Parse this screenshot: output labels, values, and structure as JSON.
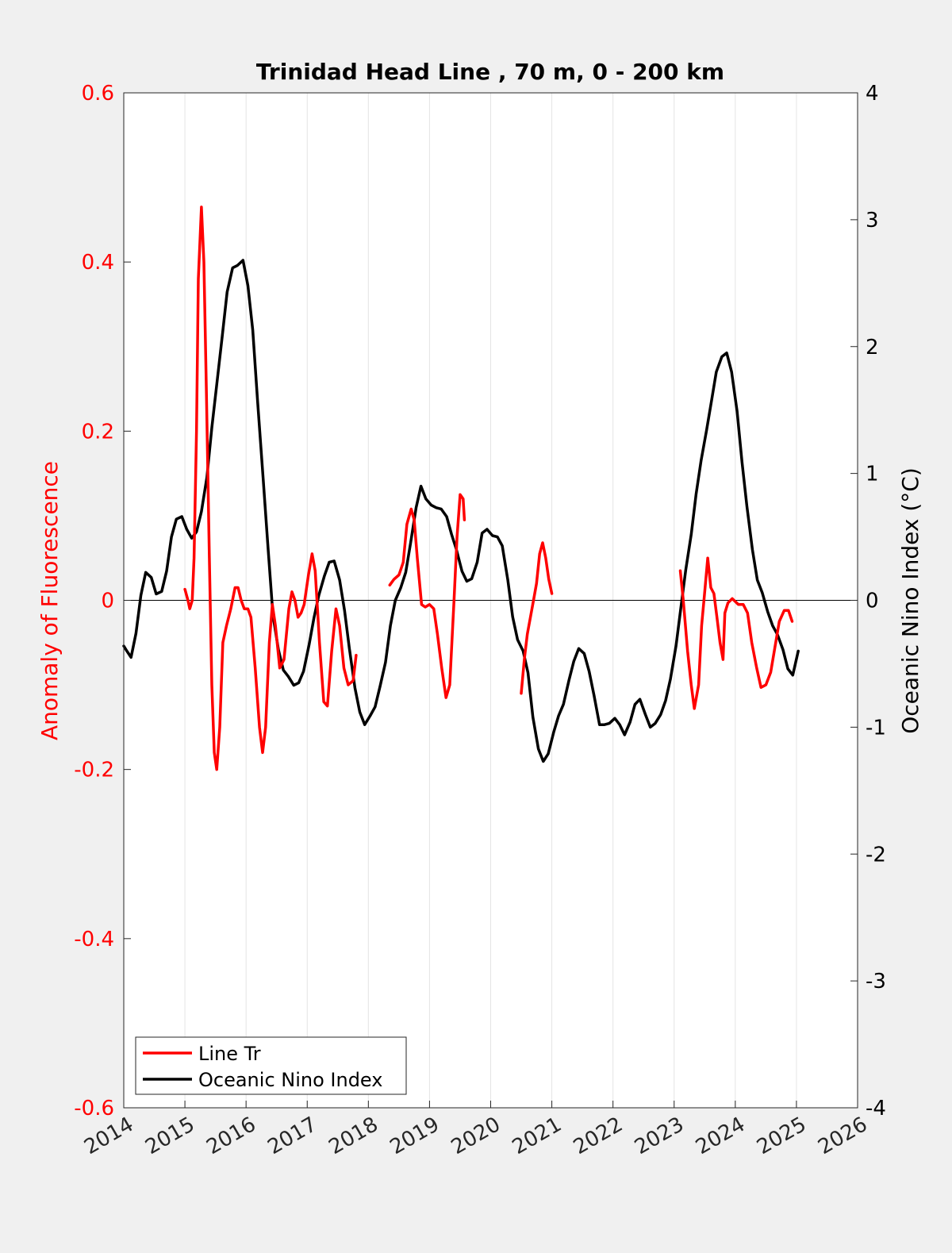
{
  "chart_data": {
    "type": "line",
    "title": "Trinidad Head Line , 70 m, 0 - 200 km",
    "xlabel": "",
    "ylabel_left": "Anomaly of Fluorescence",
    "ylabel_right": "Oceanic Nino Index (°C)",
    "xlim": [
      2014,
      2026
    ],
    "ylim_left": [
      -0.6,
      0.6
    ],
    "ylim_right": [
      -4,
      4
    ],
    "x_ticks": [
      2014,
      2015,
      2016,
      2017,
      2018,
      2019,
      2020,
      2021,
      2022,
      2023,
      2024,
      2025,
      2026
    ],
    "x_tick_labels": [
      "2014",
      "2015",
      "2016",
      "2017",
      "2018",
      "2019",
      "2020",
      "2021",
      "2022",
      "2023",
      "2024",
      "2025",
      "2026"
    ],
    "y_ticks_left": [
      -0.6,
      -0.4,
      -0.2,
      0,
      0.2,
      0.4,
      0.6
    ],
    "y_tick_labels_left": [
      "-0.6",
      "-0.4",
      "-0.2",
      "0",
      "0.2",
      "0.4",
      "0.6"
    ],
    "y_ticks_right": [
      -4,
      -3,
      -2,
      -1,
      0,
      1,
      2,
      3,
      4
    ],
    "y_tick_labels_right": [
      "-4",
      "-3",
      "-2",
      "-1",
      "0",
      "1",
      "2",
      "3",
      "4"
    ],
    "grid": "vertical",
    "zero_line": true,
    "legend_position": "bottom-left",
    "colors": {
      "fluor": "#ff0000",
      "oni": "#000000",
      "left_axis": "#ff0000",
      "right_axis": "#000000"
    },
    "series": [
      {
        "name": "Line Tr",
        "axis": "left",
        "segments": [
          [
            [
              2015.0,
              0.013
            ],
            [
              2015.05,
              0.0
            ],
            [
              2015.08,
              -0.01
            ],
            [
              2015.12,
              0.0
            ],
            [
              2015.15,
              0.05
            ],
            [
              2015.19,
              0.2
            ],
            [
              2015.22,
              0.38
            ],
            [
              2015.27,
              0.465
            ],
            [
              2015.31,
              0.4
            ],
            [
              2015.35,
              0.25
            ],
            [
              2015.4,
              0.05
            ],
            [
              2015.44,
              -0.1
            ],
            [
              2015.48,
              -0.18
            ],
            [
              2015.52,
              -0.2
            ],
            [
              2015.57,
              -0.15
            ],
            [
              2015.62,
              -0.05
            ],
            [
              2015.68,
              -0.03
            ],
            [
              2015.75,
              -0.01
            ],
            [
              2015.82,
              0.015
            ],
            [
              2015.87,
              0.015
            ],
            [
              2015.92,
              0.0
            ],
            [
              2015.97,
              -0.01
            ],
            [
              2016.03,
              -0.01
            ],
            [
              2016.08,
              -0.02
            ],
            [
              2016.15,
              -0.08
            ],
            [
              2016.22,
              -0.15
            ],
            [
              2016.27,
              -0.18
            ],
            [
              2016.32,
              -0.15
            ],
            [
              2016.38,
              -0.05
            ],
            [
              2016.43,
              -0.005
            ],
            [
              2016.48,
              -0.03
            ],
            [
              2016.55,
              -0.08
            ],
            [
              2016.62,
              -0.07
            ],
            [
              2016.7,
              -0.01
            ],
            [
              2016.75,
              0.01
            ],
            [
              2016.8,
              0.0
            ],
            [
              2016.85,
              -0.02
            ],
            [
              2016.9,
              -0.015
            ],
            [
              2016.95,
              -0.005
            ],
            [
              2017.02,
              0.03
            ],
            [
              2017.08,
              0.055
            ],
            [
              2017.13,
              0.035
            ],
            [
              2017.2,
              -0.05
            ],
            [
              2017.27,
              -0.12
            ],
            [
              2017.33,
              -0.125
            ],
            [
              2017.4,
              -0.06
            ],
            [
              2017.47,
              -0.01
            ],
            [
              2017.53,
              -0.03
            ],
            [
              2017.6,
              -0.08
            ],
            [
              2017.67,
              -0.1
            ],
            [
              2017.75,
              -0.095
            ],
            [
              2017.8,
              -0.065
            ]
          ],
          [
            [
              2018.35,
              0.018
            ],
            [
              2018.42,
              0.025
            ],
            [
              2018.5,
              0.03
            ],
            [
              2018.57,
              0.045
            ],
            [
              2018.63,
              0.09
            ],
            [
              2018.7,
              0.108
            ],
            [
              2018.75,
              0.095
            ],
            [
              2018.8,
              0.05
            ],
            [
              2018.87,
              -0.005
            ],
            [
              2018.93,
              -0.008
            ],
            [
              2019.0,
              -0.005
            ],
            [
              2019.07,
              -0.01
            ],
            [
              2019.13,
              -0.04
            ],
            [
              2019.2,
              -0.08
            ],
            [
              2019.27,
              -0.115
            ],
            [
              2019.33,
              -0.1
            ],
            [
              2019.4,
              0.0
            ],
            [
              2019.45,
              0.075
            ],
            [
              2019.5,
              0.125
            ],
            [
              2019.55,
              0.12
            ],
            [
              2019.57,
              0.095
            ]
          ],
          [
            [
              2020.5,
              -0.11
            ],
            [
              2020.55,
              -0.07
            ],
            [
              2020.6,
              -0.04
            ],
            [
              2020.65,
              -0.02
            ],
            [
              2020.7,
              0.0
            ],
            [
              2020.75,
              0.02
            ],
            [
              2020.8,
              0.055
            ],
            [
              2020.85,
              0.068
            ],
            [
              2020.9,
              0.05
            ],
            [
              2020.95,
              0.025
            ],
            [
              2021.0,
              0.008
            ]
          ]
        ],
        "segments_2": [
          [
            [
              2023.1,
              0.035
            ],
            [
              2023.15,
              0.0
            ],
            [
              2023.22,
              -0.06
            ],
            [
              2023.28,
              -0.1
            ],
            [
              2023.33,
              -0.128
            ],
            [
              2023.4,
              -0.1
            ],
            [
              2023.45,
              -0.03
            ],
            [
              2023.5,
              0.01
            ],
            [
              2023.55,
              0.05
            ],
            [
              2023.6,
              0.015
            ],
            [
              2023.65,
              0.008
            ],
            [
              2023.7,
              -0.02
            ],
            [
              2023.75,
              -0.05
            ],
            [
              2023.8,
              -0.07
            ],
            [
              2023.83,
              -0.015
            ],
            [
              2023.88,
              -0.003
            ],
            [
              2023.95,
              0.002
            ],
            [
              2024.05,
              -0.005
            ],
            [
              2024.13,
              -0.005
            ],
            [
              2024.2,
              -0.015
            ],
            [
              2024.27,
              -0.05
            ],
            [
              2024.35,
              -0.08
            ],
            [
              2024.42,
              -0.103
            ],
            [
              2024.5,
              -0.1
            ],
            [
              2024.58,
              -0.085
            ],
            [
              2024.65,
              -0.055
            ],
            [
              2024.72,
              -0.025
            ],
            [
              2024.8,
              -0.012
            ],
            [
              2024.87,
              -0.012
            ],
            [
              2024.93,
              -0.025
            ]
          ]
        ]
      },
      {
        "name": "Oceanic Nino Index",
        "axis": "right",
        "values_xy": [
          [
            2014.0,
            -0.36
          ],
          [
            2014.05,
            -0.4
          ],
          [
            2014.12,
            -0.45
          ],
          [
            2014.2,
            -0.26
          ],
          [
            2014.28,
            0.04
          ],
          [
            2014.36,
            0.22
          ],
          [
            2014.45,
            0.18
          ],
          [
            2014.53,
            0.05
          ],
          [
            2014.62,
            0.07
          ],
          [
            2014.7,
            0.23
          ],
          [
            2014.78,
            0.5
          ],
          [
            2014.86,
            0.64
          ],
          [
            2014.95,
            0.66
          ],
          [
            2015.03,
            0.56
          ],
          [
            2015.11,
            0.49
          ],
          [
            2015.19,
            0.54
          ],
          [
            2015.27,
            0.7
          ],
          [
            2015.36,
            0.97
          ],
          [
            2015.44,
            1.36
          ],
          [
            2015.52,
            1.7
          ],
          [
            2015.61,
            2.08
          ],
          [
            2015.69,
            2.43
          ],
          [
            2015.78,
            2.62
          ],
          [
            2015.86,
            2.64
          ],
          [
            2015.95,
            2.68
          ],
          [
            2016.03,
            2.48
          ],
          [
            2016.11,
            2.13
          ],
          [
            2016.19,
            1.56
          ],
          [
            2016.28,
            0.96
          ],
          [
            2016.36,
            0.41
          ],
          [
            2016.44,
            -0.12
          ],
          [
            2016.53,
            -0.39
          ],
          [
            2016.61,
            -0.55
          ],
          [
            2016.69,
            -0.6
          ],
          [
            2016.78,
            -0.67
          ],
          [
            2016.86,
            -0.65
          ],
          [
            2016.94,
            -0.56
          ],
          [
            2017.03,
            -0.35
          ],
          [
            2017.11,
            -0.14
          ],
          [
            2017.19,
            0.04
          ],
          [
            2017.28,
            0.19
          ],
          [
            2017.36,
            0.3
          ],
          [
            2017.44,
            0.31
          ],
          [
            2017.53,
            0.16
          ],
          [
            2017.61,
            -0.08
          ],
          [
            2017.69,
            -0.38
          ],
          [
            2017.78,
            -0.69
          ],
          [
            2017.86,
            -0.88
          ],
          [
            2017.94,
            -0.98
          ],
          [
            2018.03,
            -0.91
          ],
          [
            2018.11,
            -0.84
          ],
          [
            2018.19,
            -0.68
          ],
          [
            2018.28,
            -0.49
          ],
          [
            2018.36,
            -0.2
          ],
          [
            2018.44,
            0.0
          ],
          [
            2018.53,
            0.1
          ],
          [
            2018.61,
            0.22
          ],
          [
            2018.69,
            0.45
          ],
          [
            2018.78,
            0.73
          ],
          [
            2018.86,
            0.9
          ],
          [
            2018.94,
            0.8
          ],
          [
            2019.03,
            0.75
          ],
          [
            2019.11,
            0.73
          ],
          [
            2019.19,
            0.72
          ],
          [
            2019.28,
            0.66
          ],
          [
            2019.36,
            0.52
          ],
          [
            2019.44,
            0.4
          ],
          [
            2019.53,
            0.23
          ],
          [
            2019.61,
            0.15
          ],
          [
            2019.69,
            0.17
          ],
          [
            2019.78,
            0.3
          ],
          [
            2019.86,
            0.53
          ],
          [
            2019.94,
            0.56
          ],
          [
            2020.03,
            0.51
          ],
          [
            2020.11,
            0.5
          ],
          [
            2020.19,
            0.43
          ],
          [
            2020.28,
            0.16
          ],
          [
            2020.36,
            -0.13
          ],
          [
            2020.44,
            -0.31
          ],
          [
            2020.53,
            -0.4
          ],
          [
            2020.61,
            -0.57
          ],
          [
            2020.69,
            -0.92
          ],
          [
            2020.78,
            -1.17
          ],
          [
            2020.86,
            -1.27
          ],
          [
            2020.94,
            -1.21
          ],
          [
            2021.03,
            -1.04
          ],
          [
            2021.11,
            -0.91
          ],
          [
            2021.19,
            -0.82
          ],
          [
            2021.28,
            -0.63
          ],
          [
            2021.36,
            -0.48
          ],
          [
            2021.44,
            -0.38
          ],
          [
            2021.53,
            -0.42
          ],
          [
            2021.61,
            -0.56
          ],
          [
            2021.69,
            -0.75
          ],
          [
            2021.78,
            -0.98
          ],
          [
            2021.86,
            -0.98
          ],
          [
            2021.94,
            -0.97
          ],
          [
            2022.03,
            -0.93
          ],
          [
            2022.11,
            -0.98
          ],
          [
            2022.19,
            -1.06
          ],
          [
            2022.28,
            -0.96
          ],
          [
            2022.36,
            -0.82
          ],
          [
            2022.44,
            -0.78
          ],
          [
            2022.53,
            -0.9
          ],
          [
            2022.61,
            -1.0
          ],
          [
            2022.69,
            -0.97
          ],
          [
            2022.78,
            -0.9
          ],
          [
            2022.86,
            -0.79
          ],
          [
            2022.94,
            -0.62
          ],
          [
            2023.03,
            -0.36
          ],
          [
            2023.11,
            -0.06
          ],
          [
            2023.19,
            0.24
          ],
          [
            2023.28,
            0.52
          ],
          [
            2023.36,
            0.84
          ],
          [
            2023.44,
            1.1
          ],
          [
            2023.53,
            1.34
          ],
          [
            2023.61,
            1.57
          ],
          [
            2023.69,
            1.8
          ],
          [
            2023.78,
            1.92
          ],
          [
            2023.86,
            1.95
          ],
          [
            2023.94,
            1.8
          ],
          [
            2024.03,
            1.49
          ],
          [
            2024.11,
            1.09
          ],
          [
            2024.19,
            0.74
          ],
          [
            2024.28,
            0.4
          ],
          [
            2024.36,
            0.16
          ],
          [
            2024.44,
            0.06
          ],
          [
            2024.53,
            -0.09
          ],
          [
            2024.61,
            -0.2
          ],
          [
            2024.69,
            -0.27
          ],
          [
            2024.78,
            -0.39
          ],
          [
            2024.86,
            -0.54
          ],
          [
            2024.94,
            -0.59
          ],
          [
            2025.03,
            -0.4
          ]
        ]
      }
    ]
  }
}
